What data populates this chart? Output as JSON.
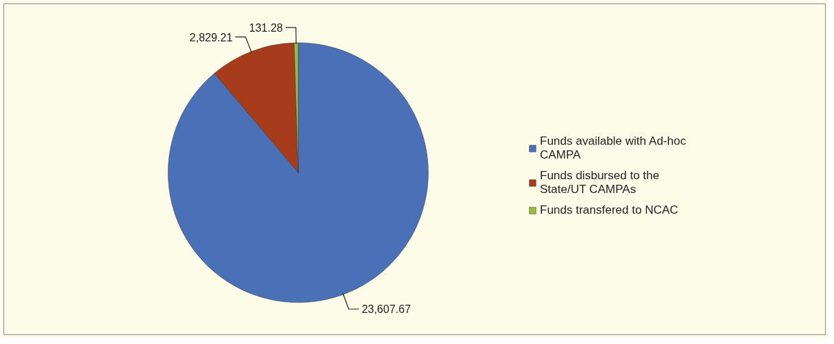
{
  "chart_data": {
    "type": "pie",
    "categories": [
      "Funds available with Ad-hoc CAMPA",
      "Funds disbursed to the State/UT CAMPAs",
      "Funds transfered to NCAC"
    ],
    "values": [
      23607.67,
      2829.21,
      131.28
    ],
    "colors": [
      "#4a70b8",
      "#a63c1c",
      "#9bbb3b"
    ],
    "value_labels": [
      "23,607.67",
      "2,829.21",
      "131.28"
    ],
    "legend": "right"
  }
}
